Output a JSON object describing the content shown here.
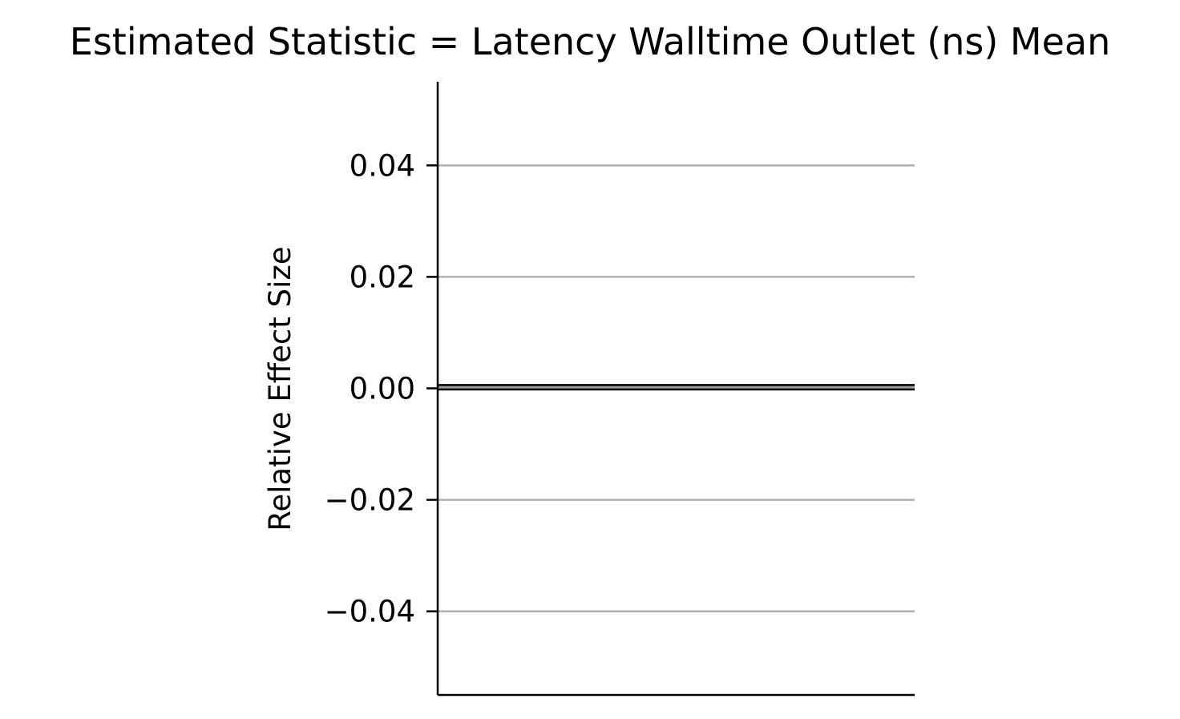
{
  "chart_data": {
    "type": "line",
    "title": "Estimated Statistic = Latency Walltime Outlet (ns) Mean",
    "xlabel": "",
    "ylabel": "Relative Effect Size",
    "ylim": [
      -0.055,
      0.055
    ],
    "yticks": [
      {
        "value": 0.04,
        "label": "0.04"
      },
      {
        "value": 0.02,
        "label": "0.02"
      },
      {
        "value": 0.0,
        "label": "0.00"
      },
      {
        "value": -0.02,
        "label": "−0.02"
      },
      {
        "value": -0.04,
        "label": "−0.04"
      }
    ],
    "grid": "horizontal",
    "reference_line": {
      "value": 0.0,
      "band": [
        -0.0002,
        0.0006
      ]
    },
    "series": [],
    "colors": {
      "grid": "#b0b0b0",
      "axis": "#000000",
      "band_fill": "#a0a0a0"
    }
  }
}
